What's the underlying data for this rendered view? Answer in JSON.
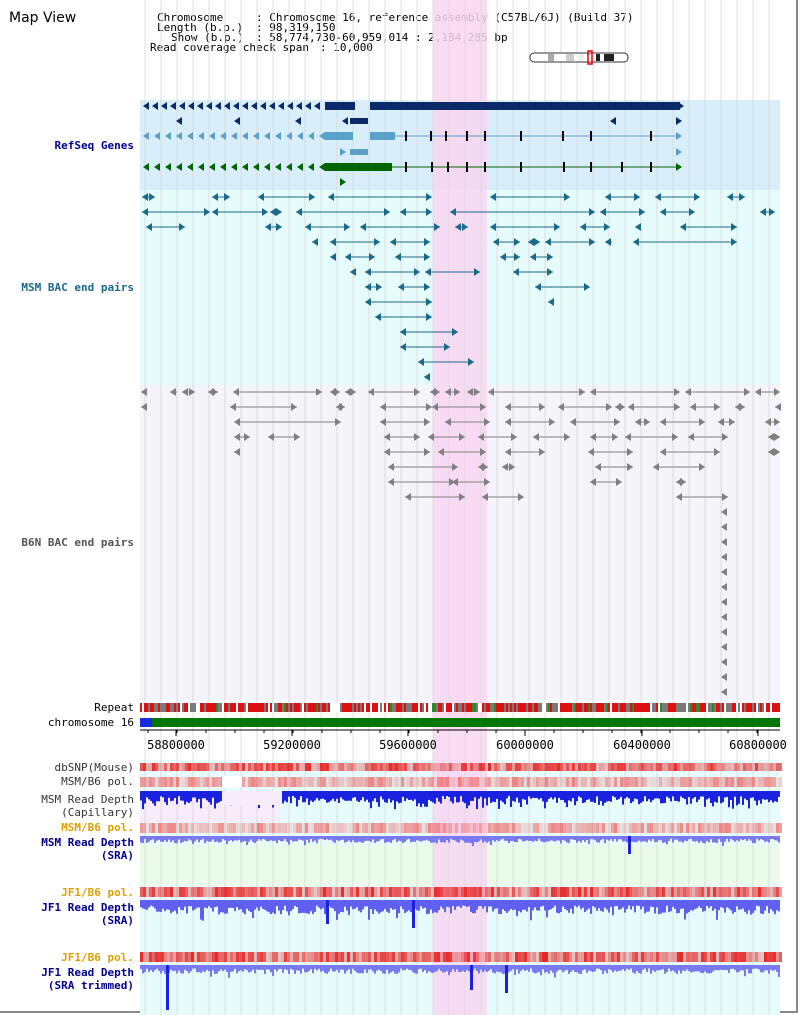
{
  "panel_title": "Map View",
  "info": {
    "chromosome_key": "Chromosome",
    "chromosome_val": ": Chromosome 16, reference assembly (C57BL/6J) (Build 37)",
    "length_key": "Length (b.p.)",
    "length_val": ": 98,319,150",
    "show_key": "Show (b.p.)",
    "show_val": ": 58,774,730-60,959,014 : 2,184,285 bp",
    "coverage_key": "Read coverage check span",
    "coverage_val": ": 10,000"
  },
  "tracks": {
    "refseq": "RefSeq Genes",
    "msm_bac": "MSM BAC end pairs",
    "b6n_bac": "B6N BAC end pairs",
    "repeat": "Repeat",
    "chromosome": "chromosome 16",
    "dbsnp": "dbSNP(Mouse)",
    "msm_b6_pol": "MSM/B6 pol.",
    "msm_depth_1": "MSM Read Depth",
    "msm_depth_2": "(Capillary)",
    "msm_b6_pol_2": "MSM/B6 pol.",
    "msm_sra_1": "MSM Read Depth",
    "msm_sra_2": "(SRA)",
    "jf1_pol_1": "JF1/B6 pol.",
    "jf1_sra_1": "JF1 Read Depth",
    "jf1_sra_2": "(SRA)",
    "jf1_pol_2": "JF1/B6 pol.",
    "jf1_trim_1": "JF1 Read Depth",
    "jf1_trim_2": "(SRA trimmed)"
  },
  "axis_ticks": [
    "58800000",
    "59200000",
    "59600000",
    "60000000",
    "60400000",
    "60800000"
  ],
  "colors": {
    "highlight": "#f8d6f0",
    "refseq_bg": "#d8eefa",
    "bac_bg": "#e6fbfb",
    "gene_dark": "#0a2a6a",
    "gene_light": "#5aa0c8",
    "gene_green": "#006400",
    "msm_pair": "#1c6a8a",
    "b6n_pair": "#808080",
    "depth_blue": "#1a22e0",
    "depth_light": "#7a7af0",
    "label_blue": "#00008b",
    "label_orange": "#e0a000",
    "label_teal": "#1c6a8a"
  }
}
